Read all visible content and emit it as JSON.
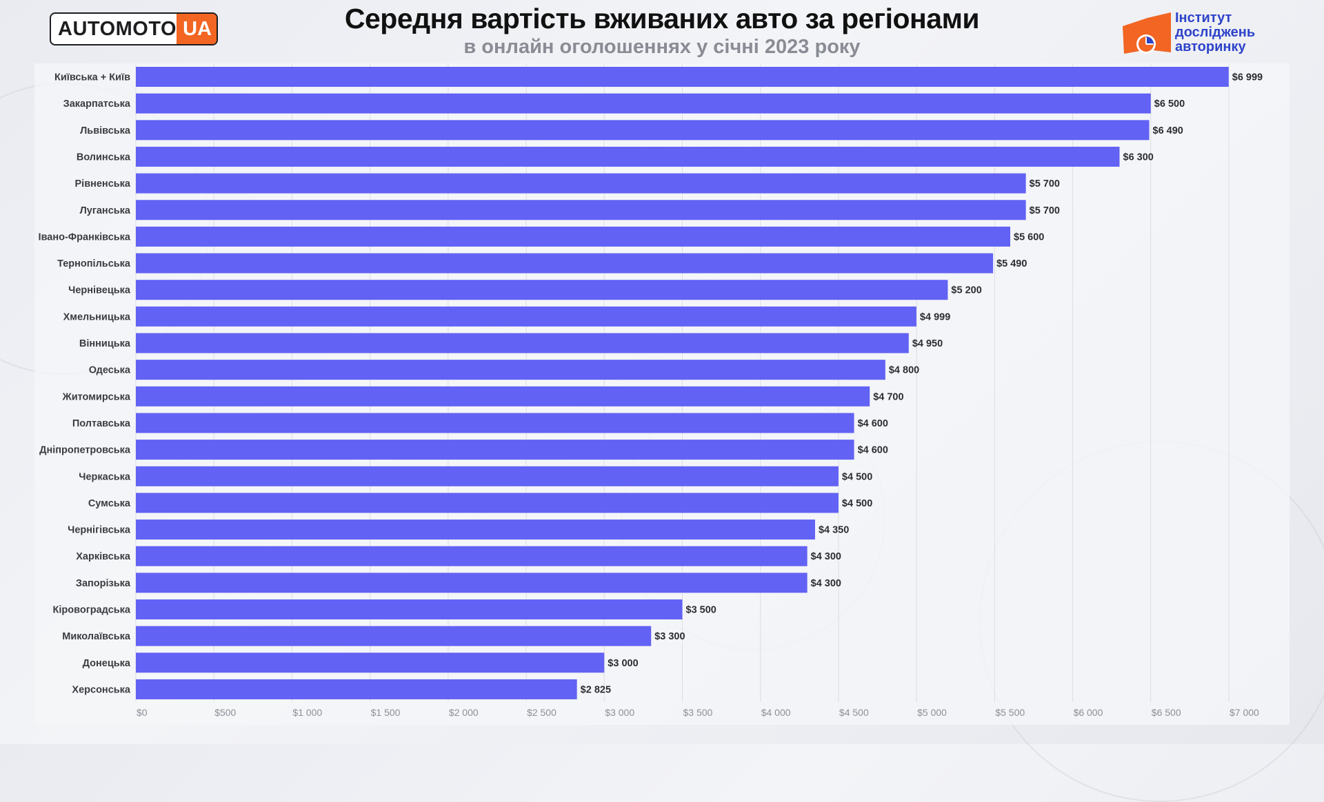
{
  "header": {
    "logo_main": "AUTOMOTO",
    "logo_suffix": "UA",
    "title": "Середня вартість вживаних авто за регіонами",
    "subtitle": "в онлайн оголошеннях у січні 2023 року",
    "institute_line1": "Інститут",
    "institute_line2": "досліджень",
    "institute_line3": "авторинку"
  },
  "colors": {
    "bar": "#6262f5",
    "logo_accent": "#f26522",
    "institute_blue": "#2d43c9",
    "institute_orange": "#f26522"
  },
  "chart_data": {
    "type": "bar",
    "orientation": "horizontal",
    "title": "Середня вартість вживаних авто за регіонами",
    "subtitle": "в онлайн оголошеннях у січні 2023 року",
    "categories": [
      "Київська + Київ",
      "Закарпатська",
      "Львівська",
      "Волинська",
      "Рівненська",
      "Луганська",
      "Івано-Франківська",
      "Тернопільська",
      "Чернівецька",
      "Хмельницька",
      "Вінницька",
      "Одеська",
      "Житомирська",
      "Полтавська",
      "Дніпропетровська",
      "Черкаська",
      "Сумська",
      "Чернігівська",
      "Харківська",
      "Запорізька",
      "Кіровоградська",
      "Миколаївська",
      "Донецька",
      "Херсонська"
    ],
    "values": [
      6999,
      6500,
      6490,
      6300,
      5700,
      5700,
      5600,
      5490,
      5200,
      4999,
      4950,
      4800,
      4700,
      4600,
      4600,
      4500,
      4500,
      4350,
      4300,
      4300,
      3500,
      3300,
      3000,
      2825
    ],
    "value_labels": [
      "$6 999",
      "$6 500",
      "$6 490",
      "$6 300",
      "$5 700",
      "$5 700",
      "$5 600",
      "$5 490",
      "$5 200",
      "$4 999",
      "$4 950",
      "$4 800",
      "$4 700",
      "$4 600",
      "$4 600",
      "$4 500",
      "$4 500",
      "$4 350",
      "$4 300",
      "$4 300",
      "$3 500",
      "$3 300",
      "$3 000",
      "$2 825"
    ],
    "xticks": [
      0,
      500,
      1000,
      1500,
      2000,
      2500,
      3000,
      3500,
      4000,
      4500,
      5000,
      5500,
      6000,
      6500,
      7000
    ],
    "xtick_labels": [
      "$0",
      "$500",
      "$1 000",
      "$1 500",
      "$2 000",
      "$2 500",
      "$3 000",
      "$3 500",
      "$4 000",
      "$4 500",
      "$5 000",
      "$5 500",
      "$6 000",
      "$6 500",
      "$7 000"
    ],
    "xlim": [
      0,
      7400
    ],
    "grid": true,
    "legend": "none"
  }
}
